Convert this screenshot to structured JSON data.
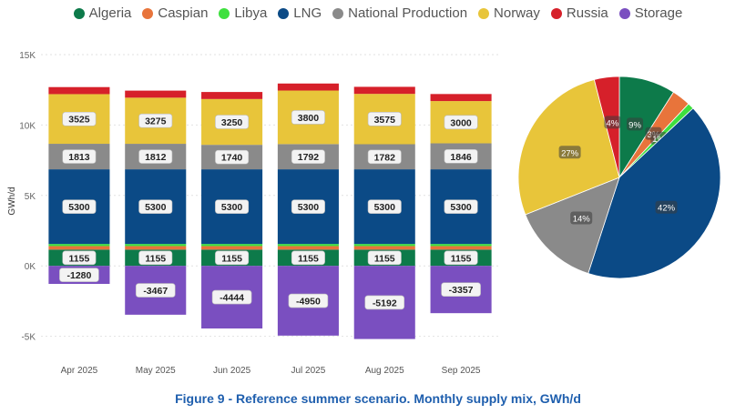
{
  "caption": "Figure 9 - Reference summer scenario. Monthly supply mix, GWh/d",
  "legend": [
    {
      "name": "Algeria",
      "color": "#0d7a4a"
    },
    {
      "name": "Caspian",
      "color": "#e8743b"
    },
    {
      "name": "Libya",
      "color": "#3ee03e"
    },
    {
      "name": "LNG",
      "color": "#0b4a86"
    },
    {
      "name": "National Production",
      "color": "#8a8a8a"
    },
    {
      "name": "Norway",
      "color": "#e8c53a"
    },
    {
      "name": "Russia",
      "color": "#d6202a"
    },
    {
      "name": "Storage",
      "color": "#7a4fc0"
    }
  ],
  "chart_data": [
    {
      "type": "bar",
      "stacked": true,
      "ylabel": "GWh/d",
      "ylim": [
        -5800,
        15000
      ],
      "yticks": [
        {
          "value": -5000,
          "label": "-5K"
        },
        {
          "value": 0,
          "label": "0K"
        },
        {
          "value": 5000,
          "label": "5K"
        },
        {
          "value": 10000,
          "label": "10K"
        },
        {
          "value": 15000,
          "label": "15K"
        }
      ],
      "categories": [
        "Apr 2025",
        "May 2025",
        "Jun 2025",
        "Jul 2025",
        "Aug 2025",
        "Sep 2025"
      ],
      "series": [
        {
          "name": "Algeria",
          "color": "#0d7a4a",
          "values": [
            1155,
            1155,
            1155,
            1155,
            1155,
            1155
          ],
          "labeled": true
        },
        {
          "name": "Caspian",
          "color": "#e8743b",
          "values": [
            250,
            250,
            250,
            250,
            250,
            250
          ],
          "labeled": false
        },
        {
          "name": "Libya",
          "color": "#3ee03e",
          "values": [
            150,
            150,
            150,
            150,
            150,
            150
          ],
          "labeled": false
        },
        {
          "name": "LNG",
          "color": "#0b4a86",
          "values": [
            5300,
            5300,
            5300,
            5300,
            5300,
            5300
          ],
          "labeled": true
        },
        {
          "name": "National Production",
          "color": "#8a8a8a",
          "values": [
            1813,
            1812,
            1740,
            1792,
            1782,
            1846
          ],
          "labeled": true
        },
        {
          "name": "Norway",
          "color": "#e8c53a",
          "values": [
            3525,
            3275,
            3250,
            3800,
            3575,
            3000
          ],
          "labeled": true
        },
        {
          "name": "Russia",
          "color": "#d6202a",
          "values": [
            500,
            500,
            500,
            500,
            500,
            500
          ],
          "labeled": false
        },
        {
          "name": "Storage",
          "color": "#7a4fc0",
          "values": [
            -1280,
            -3467,
            -4444,
            -4950,
            -5192,
            -3357
          ],
          "labeled": true
        }
      ]
    },
    {
      "type": "pie",
      "slices": [
        {
          "name": "Algeria",
          "value": 9,
          "label": "9%",
          "color": "#0d7a4a"
        },
        {
          "name": "Caspian",
          "value": 3,
          "label": "3%",
          "color": "#e8743b"
        },
        {
          "name": "Libya",
          "value": 1,
          "label": "1%",
          "color": "#3ee03e"
        },
        {
          "name": "LNG",
          "value": 42,
          "label": "42%",
          "color": "#0b4a86"
        },
        {
          "name": "National Production",
          "value": 14,
          "label": "14%",
          "color": "#8a8a8a"
        },
        {
          "name": "Norway",
          "value": 27,
          "label": "27%",
          "color": "#e8c53a"
        },
        {
          "name": "Russia",
          "value": 4,
          "label": "4%",
          "color": "#d6202a"
        }
      ]
    }
  ]
}
